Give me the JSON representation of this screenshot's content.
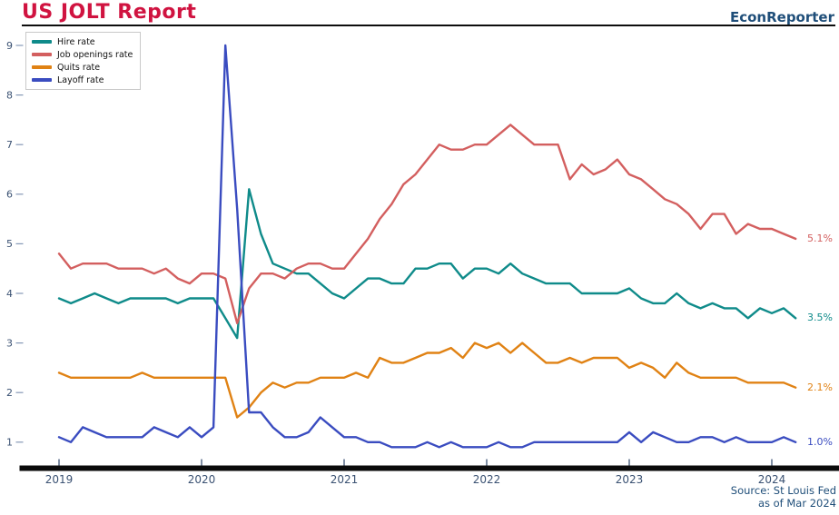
{
  "header": {
    "title": "US JOLT Report",
    "brand": "EconReporter"
  },
  "source": {
    "line1": "Source: St Louis Fed",
    "line2": "as of Mar 2024"
  },
  "colors": {
    "title": "#d01340",
    "brand": "#1f4e79",
    "axis_text": "#3b5273",
    "tick_mark": "#8598b6",
    "axis_line": "#0a0a0a",
    "legend_border": "#c9c9c9"
  },
  "chart_data": {
    "type": "line",
    "title": "US JOLT Report",
    "xlabel": "",
    "ylabel": "",
    "x_unit": "month",
    "x_start": "2019-01",
    "x_end": "2024-03",
    "grid": false,
    "legend_position": "top-left",
    "ylim": [
      0.4,
      9.3
    ],
    "y_ticks": [
      1,
      2,
      3,
      4,
      5,
      6,
      7,
      8,
      9
    ],
    "x_tick_labels": [
      "2019",
      "2020",
      "2021",
      "2022",
      "2023",
      "2024"
    ],
    "series": [
      {
        "name": "Hire rate",
        "color": "#0f8b8a",
        "end_label": "3.5%",
        "values": [
          3.9,
          3.8,
          3.9,
          4.0,
          3.9,
          3.8,
          3.9,
          3.9,
          3.9,
          3.9,
          3.8,
          3.9,
          3.9,
          3.9,
          3.5,
          3.1,
          6.1,
          5.2,
          4.6,
          4.5,
          4.4,
          4.4,
          4.2,
          4.0,
          3.9,
          4.1,
          4.3,
          4.3,
          4.2,
          4.2,
          4.5,
          4.5,
          4.6,
          4.6,
          4.3,
          4.5,
          4.5,
          4.4,
          4.6,
          4.4,
          4.3,
          4.2,
          4.2,
          4.2,
          4.0,
          4.0,
          4.0,
          4.0,
          4.1,
          3.9,
          3.8,
          3.8,
          4.0,
          3.8,
          3.7,
          3.8,
          3.7,
          3.7,
          3.5,
          3.7,
          3.6,
          3.7,
          3.5
        ]
      },
      {
        "name": "Job openings rate",
        "color": "#d35f5f",
        "end_label": "5.1%",
        "values": [
          4.8,
          4.5,
          4.6,
          4.6,
          4.6,
          4.5,
          4.5,
          4.5,
          4.4,
          4.5,
          4.3,
          4.2,
          4.4,
          4.4,
          4.3,
          3.4,
          4.1,
          4.4,
          4.4,
          4.3,
          4.5,
          4.6,
          4.6,
          4.5,
          4.5,
          4.8,
          5.1,
          5.5,
          5.8,
          6.2,
          6.4,
          6.7,
          7.0,
          6.9,
          6.9,
          7.0,
          7.0,
          7.2,
          7.4,
          7.2,
          7.0,
          7.0,
          7.0,
          6.3,
          6.6,
          6.4,
          6.5,
          6.7,
          6.4,
          6.3,
          6.1,
          5.9,
          5.8,
          5.6,
          5.3,
          5.6,
          5.6,
          5.2,
          5.4,
          5.3,
          5.3,
          5.2,
          5.1
        ]
      },
      {
        "name": "Quits rate",
        "color": "#e08214",
        "end_label": "2.1%",
        "values": [
          2.4,
          2.3,
          2.3,
          2.3,
          2.3,
          2.3,
          2.3,
          2.4,
          2.3,
          2.3,
          2.3,
          2.3,
          2.3,
          2.3,
          2.3,
          1.5,
          1.7,
          2.0,
          2.2,
          2.1,
          2.2,
          2.2,
          2.3,
          2.3,
          2.3,
          2.4,
          2.3,
          2.7,
          2.6,
          2.6,
          2.7,
          2.8,
          2.8,
          2.9,
          2.7,
          3.0,
          2.9,
          3.0,
          2.8,
          3.0,
          2.8,
          2.6,
          2.6,
          2.7,
          2.6,
          2.7,
          2.7,
          2.7,
          2.5,
          2.6,
          2.5,
          2.3,
          2.6,
          2.4,
          2.3,
          2.3,
          2.3,
          2.3,
          2.2,
          2.2,
          2.2,
          2.2,
          2.1
        ]
      },
      {
        "name": "Layoff rate",
        "color": "#3a4cc0",
        "end_label": "1.0%",
        "values": [
          1.1,
          1.0,
          1.3,
          1.2,
          1.1,
          1.1,
          1.1,
          1.1,
          1.3,
          1.2,
          1.1,
          1.3,
          1.1,
          1.3,
          9.0,
          5.7,
          1.6,
          1.6,
          1.3,
          1.1,
          1.1,
          1.2,
          1.5,
          1.3,
          1.1,
          1.1,
          1.0,
          1.0,
          0.9,
          0.9,
          0.9,
          1.0,
          0.9,
          1.0,
          0.9,
          0.9,
          0.9,
          1.0,
          0.9,
          0.9,
          1.0,
          1.0,
          1.0,
          1.0,
          1.0,
          1.0,
          1.0,
          1.0,
          1.2,
          1.0,
          1.2,
          1.1,
          1.0,
          1.0,
          1.1,
          1.1,
          1.0,
          1.1,
          1.0,
          1.0,
          1.0,
          1.1,
          1.0
        ]
      }
    ]
  }
}
